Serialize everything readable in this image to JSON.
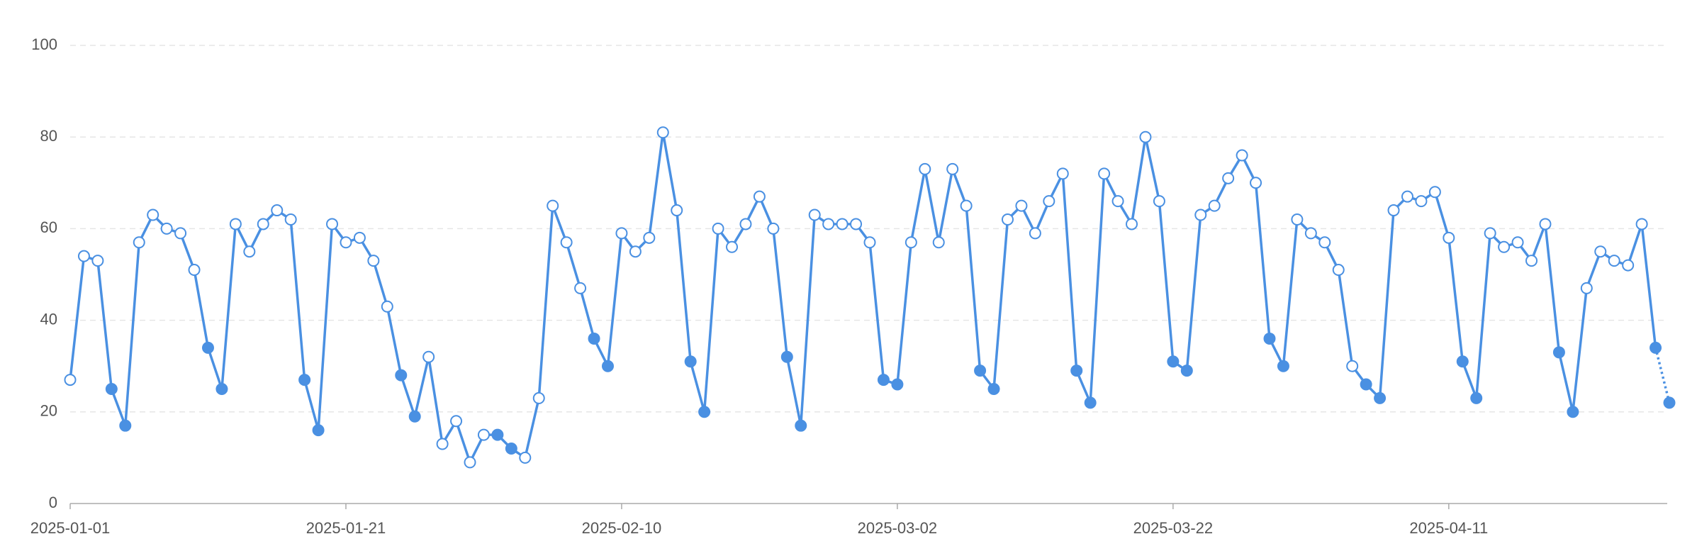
{
  "chart_data": {
    "type": "line",
    "x": [
      "2025-01-01",
      "2025-01-02",
      "2025-01-03",
      "2025-01-04",
      "2025-01-05",
      "2025-01-06",
      "2025-01-07",
      "2025-01-08",
      "2025-01-09",
      "2025-01-10",
      "2025-01-11",
      "2025-01-12",
      "2025-01-13",
      "2025-01-14",
      "2025-01-15",
      "2025-01-16",
      "2025-01-17",
      "2025-01-18",
      "2025-01-19",
      "2025-01-20",
      "2025-01-21",
      "2025-01-22",
      "2025-01-23",
      "2025-01-24",
      "2025-01-25",
      "2025-01-26",
      "2025-01-27",
      "2025-01-28",
      "2025-01-29",
      "2025-01-30",
      "2025-01-31",
      "2025-02-01",
      "2025-02-02",
      "2025-02-03",
      "2025-02-04",
      "2025-02-05",
      "2025-02-06",
      "2025-02-07",
      "2025-02-08",
      "2025-02-09",
      "2025-02-10",
      "2025-02-11",
      "2025-02-12",
      "2025-02-13",
      "2025-02-14",
      "2025-02-15",
      "2025-02-16",
      "2025-02-17",
      "2025-02-18",
      "2025-02-19",
      "2025-02-20",
      "2025-02-21",
      "2025-02-22",
      "2025-02-23",
      "2025-02-24",
      "2025-02-25",
      "2025-02-26",
      "2025-02-27",
      "2025-02-28",
      "2025-03-01",
      "2025-03-02",
      "2025-03-03",
      "2025-03-04",
      "2025-03-05",
      "2025-03-06",
      "2025-03-07",
      "2025-03-08",
      "2025-03-09",
      "2025-03-10",
      "2025-03-11",
      "2025-03-12",
      "2025-03-13",
      "2025-03-14",
      "2025-03-15",
      "2025-03-16",
      "2025-03-17",
      "2025-03-18",
      "2025-03-19",
      "2025-03-20",
      "2025-03-21",
      "2025-03-22",
      "2025-03-23",
      "2025-03-24",
      "2025-03-25",
      "2025-03-26",
      "2025-03-27",
      "2025-03-28",
      "2025-03-29",
      "2025-03-30",
      "2025-03-31",
      "2025-04-01",
      "2025-04-02",
      "2025-04-03",
      "2025-04-04",
      "2025-04-05",
      "2025-04-06",
      "2025-04-07",
      "2025-04-08",
      "2025-04-09",
      "2025-04-10",
      "2025-04-11",
      "2025-04-12",
      "2025-04-13",
      "2025-04-14",
      "2025-04-15",
      "2025-04-16",
      "2025-04-17",
      "2025-04-18",
      "2025-04-19",
      "2025-04-20",
      "2025-04-21",
      "2025-04-22",
      "2025-04-23",
      "2025-04-24",
      "2025-04-25",
      "2025-04-26",
      "2025-04-27"
    ],
    "values": [
      27,
      54,
      53,
      25,
      17,
      57,
      63,
      60,
      59,
      51,
      34,
      25,
      61,
      55,
      61,
      64,
      62,
      27,
      16,
      61,
      57,
      58,
      53,
      43,
      28,
      19,
      32,
      13,
      18,
      9,
      15,
      15,
      12,
      10,
      23,
      65,
      57,
      47,
      36,
      30,
      59,
      55,
      58,
      81,
      64,
      31,
      20,
      60,
      56,
      61,
      67,
      60,
      32,
      17,
      63,
      61,
      61,
      61,
      57,
      27,
      26,
      57,
      73,
      57,
      73,
      65,
      29,
      25,
      62,
      65,
      59,
      66,
      72,
      29,
      22,
      72,
      66,
      61,
      80,
      66,
      31,
      29,
      63,
      65,
      71,
      76,
      70,
      36,
      30,
      62,
      59,
      57,
      51,
      30,
      26,
      23,
      64,
      67,
      66,
      68,
      58,
      31,
      23,
      59,
      56,
      57,
      53,
      61,
      33,
      20,
      47,
      55,
      53,
      52,
      61,
      34,
      22
    ],
    "color": "#4a90e2",
    "xticks": [
      "2025-01-01",
      "2025-01-21",
      "2025-02-10",
      "2025-03-02",
      "2025-03-22",
      "2025-04-11"
    ],
    "ylim": [
      0,
      100
    ],
    "yticks": [
      0,
      20,
      40,
      60,
      80,
      100
    ],
    "grid": true
  }
}
